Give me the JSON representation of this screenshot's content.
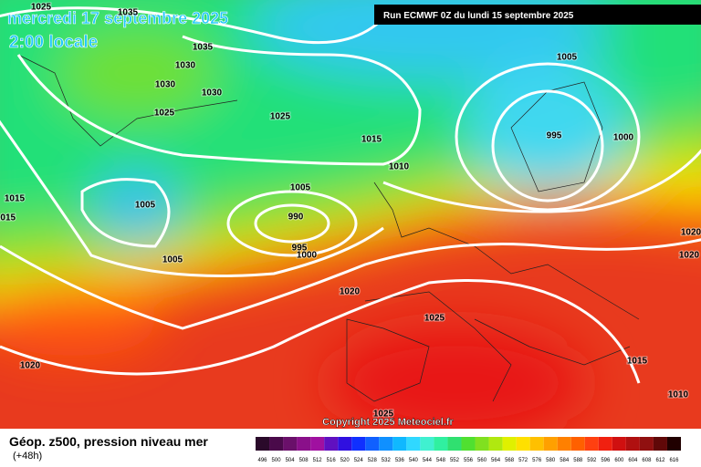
{
  "header": {
    "title": "mercredi 17 septembre 2025",
    "time": "2:00 locale",
    "run": "Run ECMWF 0Z du lundi 15 septembre 2025"
  },
  "isobars": [
    1025,
    1035,
    1035,
    1030,
    1030,
    1030,
    1025,
    1025,
    1015,
    1010,
    1005,
    1005,
    990,
    995,
    1000,
    1005,
    1015,
    1015,
    1020,
    1025,
    1020,
    1005,
    995,
    1000,
    1020,
    1020,
    1015,
    1010,
    1025
  ],
  "copyright": "Copyright 2025 Meteociel.fr",
  "legend": {
    "title": "Géop. z500, pression niveau mer",
    "lead": "(+48h)",
    "scale": [
      "496",
      "500",
      "504",
      "508",
      "512",
      "516",
      "520",
      "524",
      "528",
      "532",
      "536",
      "540",
      "544",
      "548",
      "552",
      "556",
      "560",
      "564",
      "568",
      "572",
      "576",
      "580",
      "584",
      "588",
      "592",
      "596",
      "600",
      "604",
      "608",
      "612",
      "616"
    ]
  }
}
